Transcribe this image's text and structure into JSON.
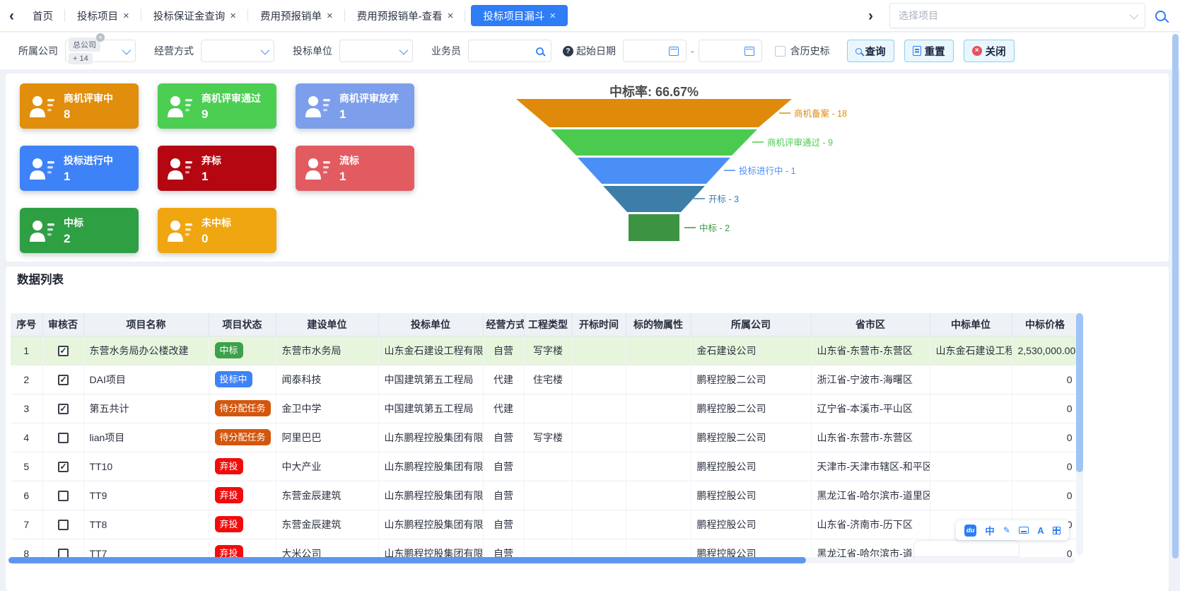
{
  "accent_color": "#2e7cf6",
  "tabs": [
    {
      "key": "home",
      "label": "首页",
      "closable": false,
      "active": false
    },
    {
      "key": "bid-projects",
      "label": "投标项目",
      "closable": true,
      "active": false
    },
    {
      "key": "bid-bond-query",
      "label": "投标保证金查询",
      "closable": true,
      "active": false
    },
    {
      "key": "expense-form",
      "label": "费用预报销单",
      "closable": true,
      "active": false
    },
    {
      "key": "expense-form-view",
      "label": "费用预报销单-查看",
      "closable": true,
      "active": false
    },
    {
      "key": "bid-funnel",
      "label": "投标项目漏斗",
      "closable": true,
      "active": true
    }
  ],
  "project_select": {
    "placeholder": "选择项目"
  },
  "filters": {
    "company": {
      "label": "所属公司",
      "selected_tag": "总公司",
      "more_tag": "+ 14"
    },
    "mode": {
      "label": "经营方式",
      "value": ""
    },
    "bid_unit": {
      "label": "投标单位",
      "value": ""
    },
    "salesman": {
      "label": "业务员",
      "value": ""
    },
    "date": {
      "label": "起始日期",
      "start": "",
      "end": "",
      "separator": "-"
    },
    "history": {
      "label": "含历史标",
      "checked": false
    },
    "buttons": {
      "query": "查询",
      "reset": "重置",
      "close": "关闭"
    }
  },
  "stat_cards": [
    {
      "key": "review-in-progress",
      "label": "商机评审中",
      "value": "8",
      "color": "#e08e0b"
    },
    {
      "key": "review-passed",
      "label": "商机评审通过",
      "value": "9",
      "color": "#4bce52"
    },
    {
      "key": "review-abandoned",
      "label": "商机评审放弃",
      "value": "1",
      "color": "#7d9eeb"
    },
    {
      "key": "bidding-in-progress",
      "label": "投标进行中",
      "value": "1",
      "color": "#3e82f7"
    },
    {
      "key": "bid-discarded",
      "label": "弃标",
      "value": "1",
      "color": "#b40711"
    },
    {
      "key": "bid-failed",
      "label": "流标",
      "value": "1",
      "color": "#e25b60"
    },
    {
      "key": "won",
      "label": "中标",
      "value": "2",
      "color": "#2f9f44"
    },
    {
      "key": "not-won",
      "label": "未中标",
      "value": "0",
      "color": "#efa611"
    }
  ],
  "funnel": {
    "title": "中标率: 66.67%",
    "levels": [
      {
        "label": "商机备案",
        "value": 18,
        "color": "#e08a0b",
        "label_text": "商机备案 - 18"
      },
      {
        "label": "商机评审通过",
        "value": 9,
        "color": "#4acb50",
        "label_text": "商机评审通过 - 9"
      },
      {
        "label": "投标进行中",
        "value": 1,
        "color": "#4a8ff5",
        "label_text": "投标进行中 - 1"
      },
      {
        "label": "开标",
        "value": 3,
        "color": "#3c7ea8",
        "label_text": "开标 - 3"
      },
      {
        "label": "中标",
        "value": 2,
        "color": "#3c9443",
        "label_text": "中标 - 2"
      }
    ]
  },
  "chart_data": {
    "type": "funnel",
    "title": "中标率: 66.67%",
    "categories": [
      "商机备案",
      "商机评审通过",
      "投标进行中",
      "开标",
      "中标"
    ],
    "values": [
      18,
      9,
      1,
      3,
      2
    ],
    "colors": [
      "#e08a0b",
      "#4acb50",
      "#4a8ff5",
      "#3c7ea8",
      "#3c9443"
    ],
    "label_position": "right"
  },
  "table": {
    "title": "数据列表",
    "columns": [
      {
        "key": "seq",
        "label": "序号"
      },
      {
        "key": "audited",
        "label": "审核否"
      },
      {
        "key": "name",
        "label": "项目名称"
      },
      {
        "key": "status",
        "label": "项目状态"
      },
      {
        "key": "builder",
        "label": "建设单位"
      },
      {
        "key": "bidder",
        "label": "投标单位"
      },
      {
        "key": "mode",
        "label": "经营方式"
      },
      {
        "key": "type",
        "label": "工程类型"
      },
      {
        "key": "open_time",
        "label": "开标时间"
      },
      {
        "key": "subject_attr",
        "label": "标的物属性"
      },
      {
        "key": "company",
        "label": "所属公司"
      },
      {
        "key": "region",
        "label": "省市区"
      },
      {
        "key": "winner",
        "label": "中标单位"
      },
      {
        "key": "price",
        "label": "中标价格"
      }
    ],
    "rows": [
      {
        "seq": "1",
        "checked": true,
        "name": "东营水务局办公楼改建",
        "status": "中标",
        "status_color": "#3da04a",
        "builder": "东营市水务局",
        "bidder": "山东金石建设工程有限",
        "mode": "自营",
        "type": "写字楼",
        "open_time": "",
        "subject_attr": "",
        "company": "金石建设公司",
        "region": "山东省-东营市-东营区",
        "winner": "山东金石建设工程",
        "price": "2,530,000.00",
        "highlight": true
      },
      {
        "seq": "2",
        "checked": true,
        "name": "DAI项目",
        "status": "投标中",
        "status_color": "#3e82f7",
        "builder": "闻泰科技",
        "bidder": "中国建筑第五工程局",
        "mode": "代建",
        "type": "住宅楼",
        "open_time": "",
        "subject_attr": "",
        "company": "鹏程控股二公司",
        "region": "浙江省-宁波市-海曙区",
        "winner": "",
        "price": "0",
        "highlight": false
      },
      {
        "seq": "3",
        "checked": true,
        "name": "第五共计",
        "status": "待分配任务",
        "status_color": "#d4560d",
        "builder": "金卫中学",
        "bidder": "中国建筑第五工程局",
        "mode": "代建",
        "type": "",
        "open_time": "",
        "subject_attr": "",
        "company": "鹏程控股二公司",
        "region": "辽宁省-本溪市-平山区",
        "winner": "",
        "price": "0",
        "highlight": false
      },
      {
        "seq": "4",
        "checked": false,
        "name": "lian项目",
        "status": "待分配任务",
        "status_color": "#d4560d",
        "builder": "阿里巴巴",
        "bidder": "山东鹏程控股集团有限",
        "mode": "自营",
        "type": "写字楼",
        "open_time": "",
        "subject_attr": "",
        "company": "鹏程控股二公司",
        "region": "山东省-东营市-东营区",
        "winner": "",
        "price": "0",
        "highlight": false
      },
      {
        "seq": "5",
        "checked": true,
        "name": "TT10",
        "status": "弃投",
        "status_color": "#f10c0c",
        "builder": "中大产业",
        "bidder": "山东鹏程控股集团有限",
        "mode": "自营",
        "type": "",
        "open_time": "",
        "subject_attr": "",
        "company": "鹏程控股公司",
        "region": "天津市-天津市辖区-和平区",
        "winner": "",
        "price": "0",
        "highlight": false
      },
      {
        "seq": "6",
        "checked": false,
        "name": "TT9",
        "status": "弃投",
        "status_color": "#f10c0c",
        "builder": "东营金辰建筑",
        "bidder": "山东鹏程控股集团有限",
        "mode": "自营",
        "type": "",
        "open_time": "",
        "subject_attr": "",
        "company": "鹏程控股公司",
        "region": "黑龙江省-哈尔滨市-道里区",
        "winner": "",
        "price": "0",
        "highlight": false
      },
      {
        "seq": "7",
        "checked": false,
        "name": "TT8",
        "status": "弃投",
        "status_color": "#f10c0c",
        "builder": "东营金辰建筑",
        "bidder": "山东鹏程控股集团有限",
        "mode": "自营",
        "type": "",
        "open_time": "",
        "subject_attr": "",
        "company": "鹏程控股公司",
        "region": "山东省-济南市-历下区",
        "winner": "",
        "price": "0",
        "highlight": false
      },
      {
        "seq": "8",
        "checked": false,
        "name": "TT7",
        "status": "弃投",
        "status_color": "#f10c0c",
        "builder": "大米公司",
        "bidder": "山东鹏程控股集团有限",
        "mode": "自营",
        "type": "",
        "open_time": "",
        "subject_attr": "",
        "company": "鹏程控股公司",
        "region": "黑龙江省-哈尔滨市-道里区",
        "winner": "",
        "price": "0",
        "highlight": false
      }
    ]
  },
  "ime_toolbar": {
    "logo_text": "du",
    "mode_text": "中",
    "font_text": "A"
  }
}
